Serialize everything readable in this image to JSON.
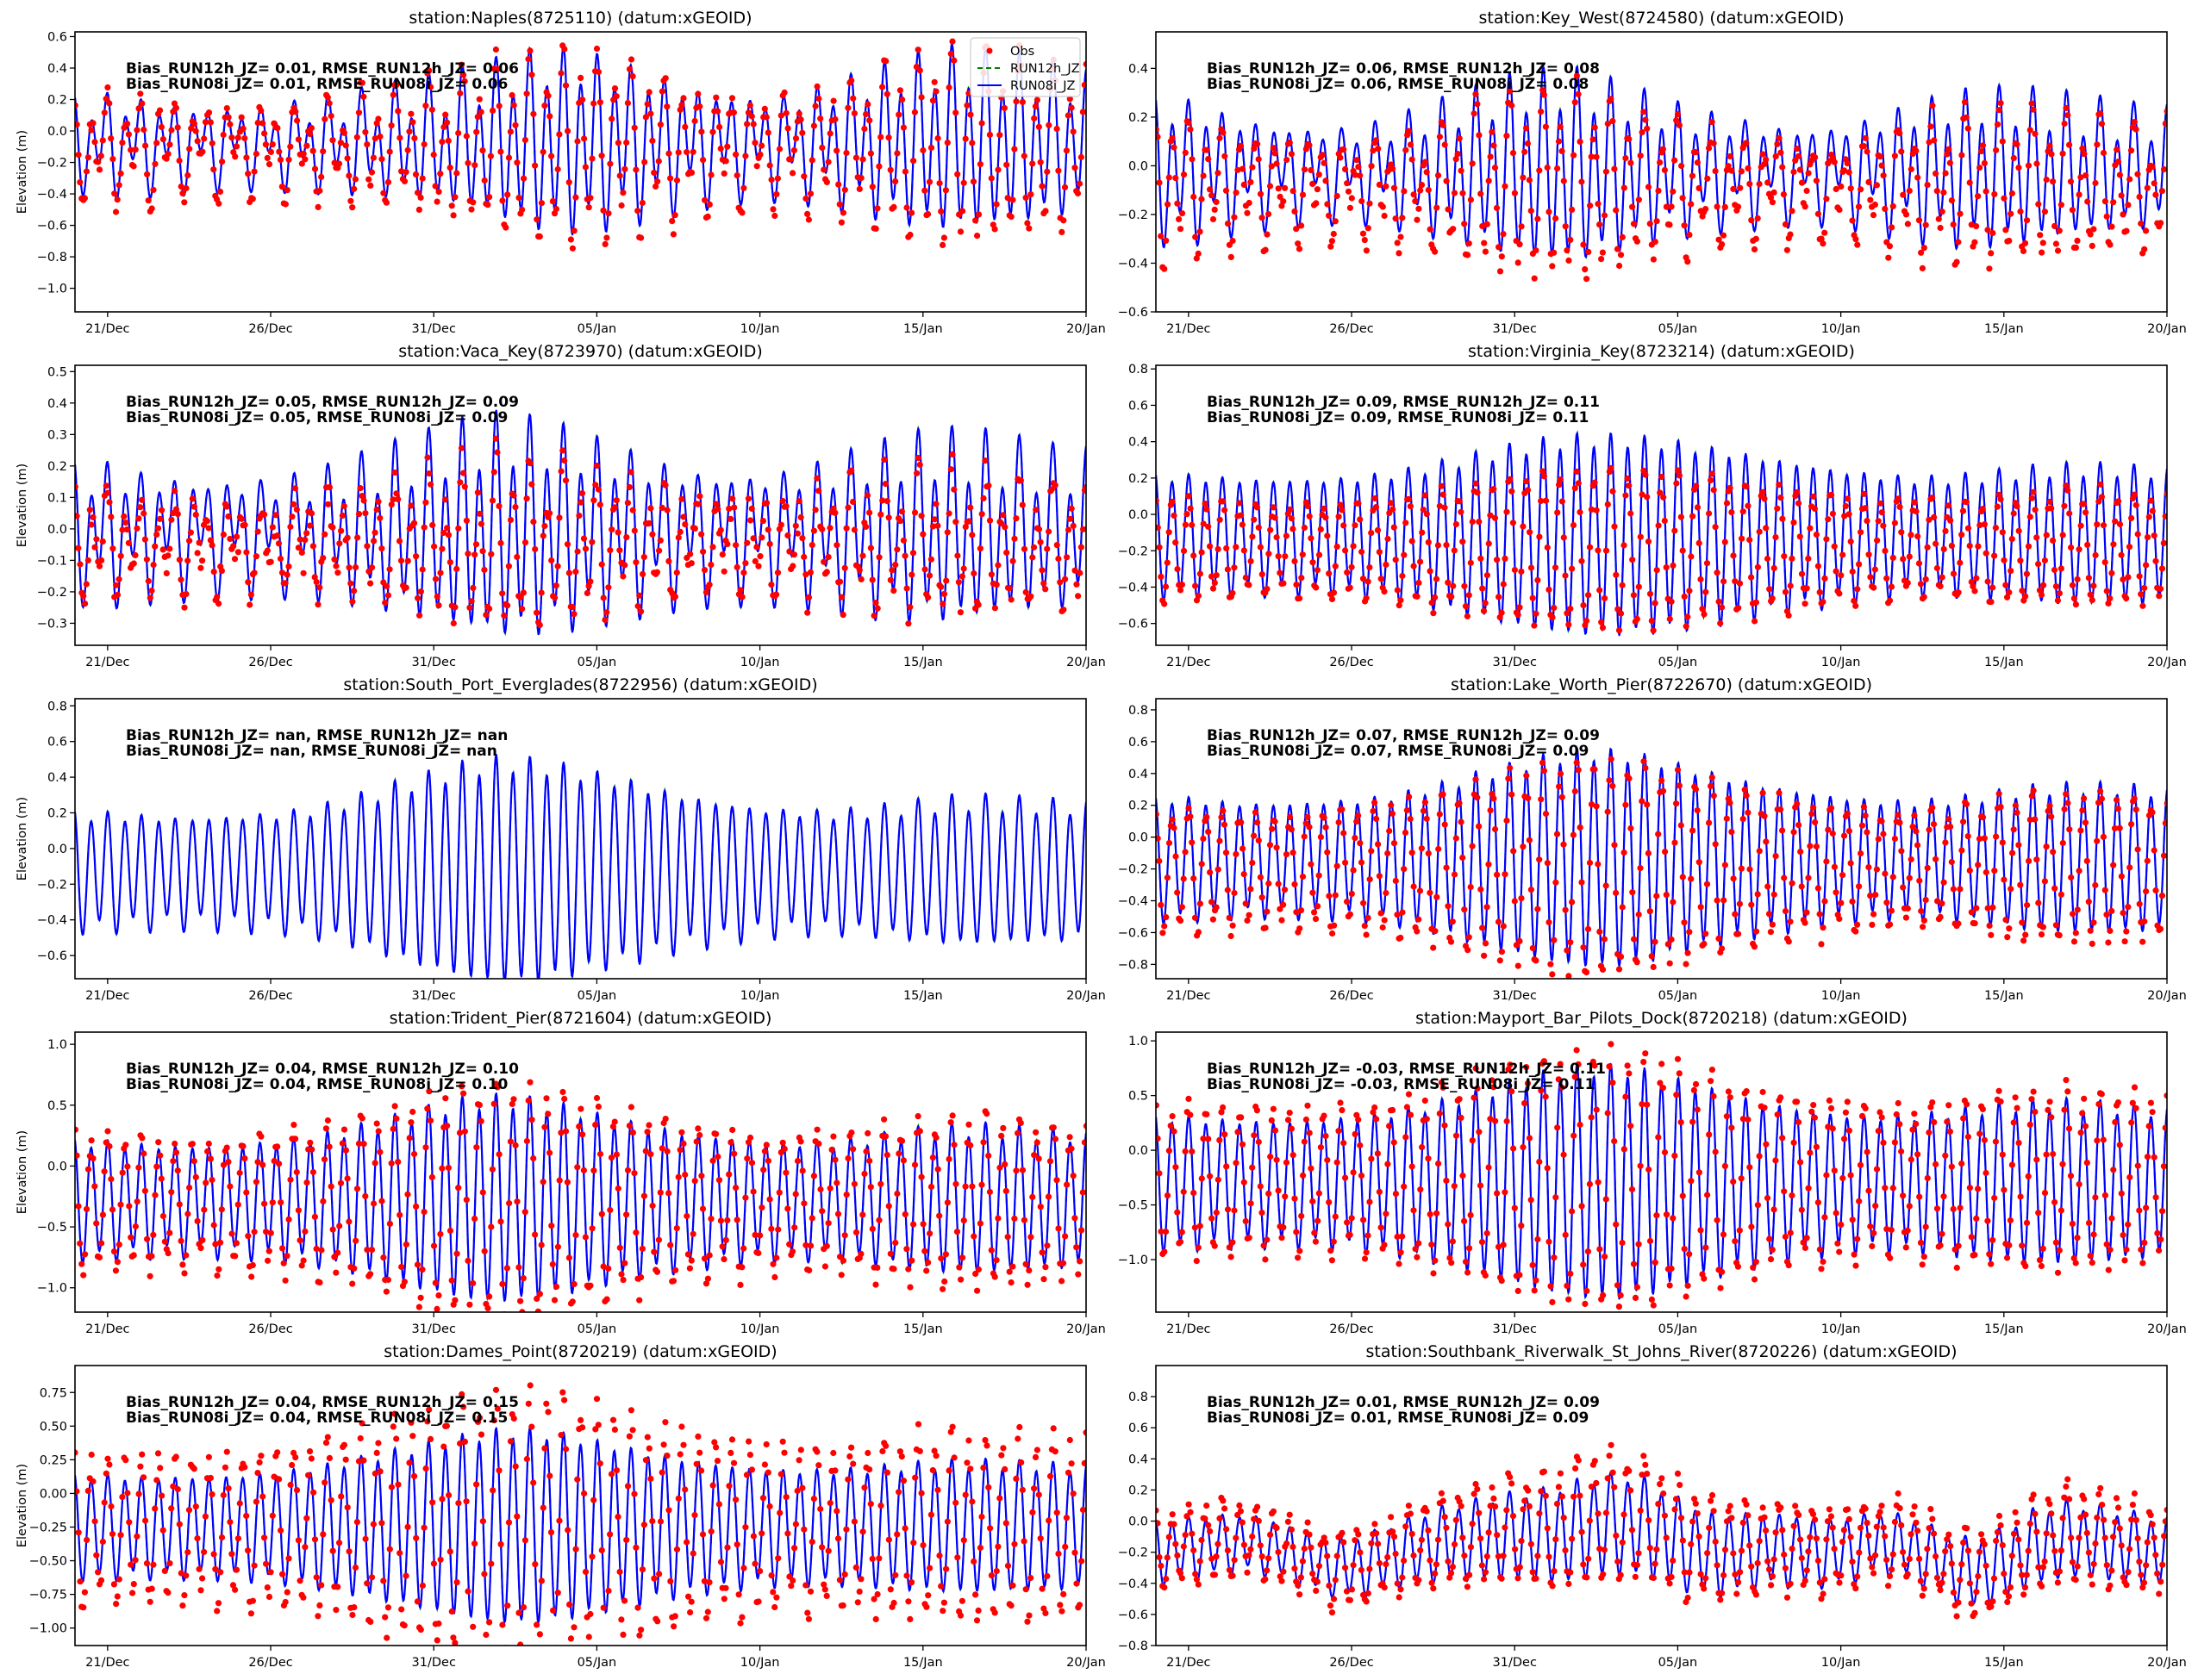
{
  "figure": {
    "legend": {
      "placement": "upper-right of first panel",
      "entries": [
        {
          "label": "Obs",
          "style": "dots",
          "color": "#ff0000"
        },
        {
          "label": "RUN12h_JZ",
          "style": "dashed",
          "color": "#008000"
        },
        {
          "label": "RUN08i_JZ",
          "style": "solid",
          "color": "#0000ff"
        }
      ]
    }
  },
  "chart_data": [
    {
      "type": "line",
      "title": "station:Naples(8725110) (datum:xGEOID)",
      "ylabel": "Elevation (m)",
      "xlabel": "",
      "xlim": [
        "20/Dec",
        "20/Jan"
      ],
      "xticks": [
        "21/Dec",
        "26/Dec",
        "31/Dec",
        "05/Jan",
        "10/Jan",
        "15/Jan",
        "20/Jan"
      ],
      "ylim": [
        -1.15,
        0.63
      ],
      "yticks": [
        -1.0,
        -0.8,
        -0.6,
        -0.4,
        -0.2,
        0.0,
        0.2,
        0.4,
        0.6
      ],
      "ytick_format": 1,
      "show_ylabel": true,
      "stats": [
        "Bias_RUN12h_JZ=  0.01, RMSE_RUN12h_JZ=  0.06",
        "Bias_RUN08i_JZ=  0.01, RMSE_RUN08i_JZ=  0.06"
      ],
      "show_legend": true,
      "has_obs": true,
      "tide": {
        "mean": -0.08,
        "semi_amp": [
          0.22,
          0.24,
          0.22,
          0.2,
          0.18,
          0.17,
          0.18,
          0.2,
          0.22,
          0.25,
          0.28,
          0.32,
          0.36,
          0.42,
          0.48,
          0.5,
          0.47,
          0.42,
          0.36,
          0.3,
          0.26,
          0.24,
          0.25,
          0.3,
          0.36,
          0.42,
          0.47,
          0.5,
          0.48,
          0.45,
          0.4,
          0.36
        ],
        "diurnal_amp": 0.14,
        "obs_offset": -0.03,
        "obs_scale": 1.08,
        "obs_noise": 0.05
      },
      "series": [
        {
          "name": "Obs",
          "kind": "scatter",
          "color": "#ff0000"
        },
        {
          "name": "RUN12h_JZ",
          "kind": "line",
          "color": "#008000"
        },
        {
          "name": "RUN08i_JZ",
          "kind": "line",
          "color": "#0000ff"
        }
      ]
    },
    {
      "type": "line",
      "title": "station:Key_West(8724580) (datum:xGEOID)",
      "ylabel": "Elevation (m)",
      "xlabel": "",
      "xlim": [
        "20/Dec",
        "20/Jan"
      ],
      "xticks": [
        "21/Dec",
        "26/Dec",
        "31/Dec",
        "05/Jan",
        "10/Jan",
        "15/Jan",
        "20/Jan"
      ],
      "ylim": [
        -0.6,
        0.55
      ],
      "yticks": [
        -0.6,
        -0.4,
        -0.2,
        0.0,
        0.2,
        0.4
      ],
      "ytick_format": 1,
      "show_ylabel": false,
      "stats": [
        "Bias_RUN12h_JZ=  0.06, RMSE_RUN12h_JZ=  0.08",
        "Bias_RUN08i_JZ=  0.06, RMSE_RUN08i_JZ=  0.08"
      ],
      "show_legend": false,
      "has_obs": true,
      "tide": {
        "mean": -0.02,
        "semi_amp": [
          0.25,
          0.24,
          0.2,
          0.17,
          0.15,
          0.14,
          0.14,
          0.16,
          0.2,
          0.24,
          0.28,
          0.32,
          0.34,
          0.34,
          0.3,
          0.26,
          0.22,
          0.19,
          0.17,
          0.15,
          0.14,
          0.15,
          0.18,
          0.22,
          0.25,
          0.27,
          0.27,
          0.26,
          0.24,
          0.22,
          0.2,
          0.2
        ],
        "diurnal_amp": 0.09,
        "obs_offset": -0.07,
        "obs_scale": 1.0,
        "obs_noise": 0.04
      },
      "series": [
        {
          "name": "Obs",
          "kind": "scatter",
          "color": "#ff0000"
        },
        {
          "name": "RUN12h_JZ",
          "kind": "line",
          "color": "#008000"
        },
        {
          "name": "RUN08i_JZ",
          "kind": "line",
          "color": "#0000ff"
        }
      ]
    },
    {
      "type": "line",
      "title": "station:Vaca_Key(8723970) (datum:xGEOID)",
      "ylabel": "Elevation (m)",
      "xlabel": "",
      "xlim": [
        "20/Dec",
        "20/Jan"
      ],
      "xticks": [
        "21/Dec",
        "26/Dec",
        "31/Dec",
        "05/Jan",
        "10/Jan",
        "15/Jan",
        "20/Jan"
      ],
      "ylim": [
        -0.37,
        0.52
      ],
      "yticks": [
        -0.3,
        -0.2,
        -0.1,
        0.0,
        0.1,
        0.2,
        0.3,
        0.4,
        0.5
      ],
      "ytick_format": 1,
      "show_ylabel": true,
      "stats": [
        "Bias_RUN12h_JZ=  0.05, RMSE_RUN12h_JZ=  0.09",
        "Bias_RUN08i_JZ=  0.05, RMSE_RUN08i_JZ=  0.09"
      ],
      "show_legend": false,
      "has_obs": true,
      "tide": {
        "mean": -0.01,
        "semi_amp": [
          0.17,
          0.17,
          0.15,
          0.14,
          0.13,
          0.13,
          0.13,
          0.14,
          0.16,
          0.19,
          0.22,
          0.25,
          0.28,
          0.3,
          0.29,
          0.27,
          0.24,
          0.21,
          0.18,
          0.16,
          0.15,
          0.15,
          0.16,
          0.18,
          0.21,
          0.23,
          0.25,
          0.25,
          0.24,
          0.22,
          0.2,
          0.2
        ],
        "diurnal_amp": 0.09,
        "obs_offset": -0.04,
        "obs_scale": 0.75,
        "obs_noise": 0.05
      },
      "series": [
        {
          "name": "Obs",
          "kind": "scatter",
          "color": "#ff0000"
        },
        {
          "name": "RUN12h_JZ",
          "kind": "line",
          "color": "#008000"
        },
        {
          "name": "RUN08i_JZ",
          "kind": "line",
          "color": "#0000ff"
        }
      ]
    },
    {
      "type": "line",
      "title": "station:Virginia_Key(8723214) (datum:xGEOID)",
      "ylabel": "Elevation (m)",
      "xlabel": "",
      "xlim": [
        "20/Dec",
        "20/Jan"
      ],
      "xticks": [
        "21/Dec",
        "26/Dec",
        "31/Dec",
        "05/Jan",
        "10/Jan",
        "15/Jan",
        "20/Jan"
      ],
      "ylim": [
        -0.72,
        0.82
      ],
      "yticks": [
        -0.6,
        -0.4,
        -0.2,
        0.0,
        0.2,
        0.4,
        0.6,
        0.8
      ],
      "ytick_format": 1,
      "show_ylabel": false,
      "stats": [
        "Bias_RUN12h_JZ=  0.09, RMSE_RUN12h_JZ=  0.11",
        "Bias_RUN08i_JZ=  0.09, RMSE_RUN08i_JZ=  0.11"
      ],
      "show_legend": false,
      "has_obs": true,
      "tide": {
        "mean": -0.12,
        "semi_amp": [
          0.33,
          0.32,
          0.31,
          0.3,
          0.3,
          0.3,
          0.31,
          0.33,
          0.36,
          0.4,
          0.44,
          0.48,
          0.51,
          0.53,
          0.53,
          0.52,
          0.5,
          0.47,
          0.44,
          0.41,
          0.38,
          0.35,
          0.33,
          0.31,
          0.31,
          0.32,
          0.34,
          0.36,
          0.37,
          0.37,
          0.36,
          0.35
        ],
        "diurnal_amp": 0.04,
        "obs_offset": -0.07,
        "obs_scale": 0.8,
        "obs_noise": 0.03
      },
      "series": [
        {
          "name": "Obs",
          "kind": "scatter",
          "color": "#ff0000"
        },
        {
          "name": "RUN12h_JZ",
          "kind": "line",
          "color": "#008000"
        },
        {
          "name": "RUN08i_JZ",
          "kind": "line",
          "color": "#0000ff"
        }
      ]
    },
    {
      "type": "line",
      "title": "station:South_Port_Everglades(8722956) (datum:xGEOID)",
      "ylabel": "Elevation (m)",
      "xlabel": "",
      "xlim": [
        "20/Dec",
        "20/Jan"
      ],
      "xticks": [
        "21/Dec",
        "26/Dec",
        "31/Dec",
        "05/Jan",
        "10/Jan",
        "15/Jan",
        "20/Jan"
      ],
      "ylim": [
        -0.73,
        0.84
      ],
      "yticks": [
        -0.6,
        -0.4,
        -0.2,
        0.0,
        0.2,
        0.4,
        0.6,
        0.8
      ],
      "ytick_format": 1,
      "show_ylabel": true,
      "stats": [
        "Bias_RUN12h_JZ=   nan, RMSE_RUN12h_JZ=   nan",
        "Bias_RUN08i_JZ=   nan, RMSE_RUN08i_JZ=   nan"
      ],
      "show_legend": false,
      "has_obs": false,
      "tide": {
        "mean": -0.13,
        "semi_amp": [
          0.32,
          0.31,
          0.3,
          0.29,
          0.29,
          0.3,
          0.31,
          0.33,
          0.37,
          0.42,
          0.48,
          0.53,
          0.58,
          0.61,
          0.6,
          0.57,
          0.53,
          0.49,
          0.44,
          0.4,
          0.37,
          0.34,
          0.33,
          0.32,
          0.33,
          0.35,
          0.37,
          0.39,
          0.39,
          0.38,
          0.37,
          0.36
        ],
        "diurnal_amp": 0.05,
        "obs_offset": 0,
        "obs_scale": 1,
        "obs_noise": 0
      },
      "series": [
        {
          "name": "Obs",
          "kind": "scatter",
          "color": "#ff0000"
        },
        {
          "name": "RUN12h_JZ",
          "kind": "line",
          "color": "#008000"
        },
        {
          "name": "RUN08i_JZ",
          "kind": "line",
          "color": "#0000ff"
        }
      ]
    },
    {
      "type": "line",
      "title": "station:Lake_Worth_Pier(8722670) (datum:xGEOID)",
      "ylabel": "Elevation (m)",
      "xlabel": "",
      "xlim": [
        "20/Dec",
        "20/Jan"
      ],
      "xticks": [
        "21/Dec",
        "26/Dec",
        "31/Dec",
        "05/Jan",
        "10/Jan",
        "15/Jan",
        "20/Jan"
      ],
      "ylim": [
        -0.89,
        0.87
      ],
      "yticks": [
        -0.8,
        -0.6,
        -0.4,
        -0.2,
        0.0,
        0.2,
        0.4,
        0.6,
        0.8
      ],
      "ytick_format": 1,
      "show_ylabel": false,
      "stats": [
        "Bias_RUN12h_JZ=  0.07, RMSE_RUN12h_JZ=  0.09",
        "Bias_RUN08i_JZ=  0.07, RMSE_RUN08i_JZ=  0.09"
      ],
      "show_legend": false,
      "has_obs": true,
      "tide": {
        "mean": -0.14,
        "semi_amp": [
          0.38,
          0.37,
          0.35,
          0.34,
          0.34,
          0.35,
          0.36,
          0.38,
          0.42,
          0.47,
          0.53,
          0.58,
          0.63,
          0.66,
          0.66,
          0.63,
          0.58,
          0.53,
          0.48,
          0.44,
          0.41,
          0.38,
          0.36,
          0.35,
          0.36,
          0.38,
          0.41,
          0.44,
          0.45,
          0.45,
          0.44,
          0.42
        ],
        "diurnal_amp": 0.04,
        "obs_offset": -0.06,
        "obs_scale": 1.0,
        "obs_noise": 0.04
      },
      "series": [
        {
          "name": "Obs",
          "kind": "scatter",
          "color": "#ff0000"
        },
        {
          "name": "RUN12h_JZ",
          "kind": "line",
          "color": "#008000"
        },
        {
          "name": "RUN08i_JZ",
          "kind": "line",
          "color": "#0000ff"
        }
      ]
    },
    {
      "type": "line",
      "title": "station:Trident_Pier(8721604) (datum:xGEOID)",
      "ylabel": "Elevation (m)",
      "xlabel": "",
      "xlim": [
        "20/Dec",
        "20/Jan"
      ],
      "xticks": [
        "21/Dec",
        "26/Dec",
        "31/Dec",
        "05/Jan",
        "10/Jan",
        "15/Jan",
        "20/Jan"
      ],
      "ylim": [
        -1.2,
        1.1
      ],
      "yticks": [
        -1.0,
        -0.5,
        0.0,
        0.5,
        1.0
      ],
      "ytick_format": 1,
      "show_ylabel": true,
      "stats": [
        "Bias_RUN12h_JZ=  0.04, RMSE_RUN12h_JZ=  0.10",
        "Bias_RUN08i_JZ=  0.04, RMSE_RUN08i_JZ=  0.10"
      ],
      "show_legend": false,
      "has_obs": true,
      "tide": {
        "mean": -0.28,
        "semi_amp": [
          0.48,
          0.46,
          0.44,
          0.43,
          0.43,
          0.44,
          0.46,
          0.49,
          0.54,
          0.6,
          0.67,
          0.74,
          0.8,
          0.82,
          0.8,
          0.75,
          0.68,
          0.62,
          0.57,
          0.53,
          0.5,
          0.47,
          0.46,
          0.46,
          0.48,
          0.52,
          0.56,
          0.58,
          0.58,
          0.56,
          0.54,
          0.52
        ],
        "diurnal_amp": 0.06,
        "obs_offset": -0.02,
        "obs_scale": 1.15,
        "obs_noise": 0.06
      },
      "series": [
        {
          "name": "Obs",
          "kind": "scatter",
          "color": "#ff0000"
        },
        {
          "name": "RUN12h_JZ",
          "kind": "line",
          "color": "#008000"
        },
        {
          "name": "RUN08i_JZ",
          "kind": "line",
          "color": "#0000ff"
        }
      ]
    },
    {
      "type": "line",
      "title": "station:Mayport_Bar_Pilots_Dock(8720218) (datum:xGEOID)",
      "ylabel": "Elevation (m)",
      "xlabel": "",
      "xlim": [
        "20/Dec",
        "20/Jan"
      ],
      "xticks": [
        "21/Dec",
        "26/Dec",
        "31/Dec",
        "05/Jan",
        "10/Jan",
        "15/Jan",
        "20/Jan"
      ],
      "ylim": [
        -1.48,
        1.08
      ],
      "yticks": [
        -1.0,
        -0.5,
        0.0,
        0.5,
        1.0
      ],
      "ytick_format": 1,
      "show_ylabel": false,
      "stats": [
        "Bias_RUN12h_JZ= -0.03, RMSE_RUN12h_JZ=  0.11",
        "Bias_RUN08i_JZ= -0.03, RMSE_RUN08i_JZ=  0.11"
      ],
      "show_legend": false,
      "has_obs": true,
      "tide": {
        "mean": -0.3,
        "semi_amp": [
          0.6,
          0.58,
          0.56,
          0.55,
          0.55,
          0.56,
          0.58,
          0.62,
          0.67,
          0.74,
          0.82,
          0.9,
          0.98,
          1.03,
          1.04,
          1.0,
          0.92,
          0.84,
          0.76,
          0.7,
          0.65,
          0.61,
          0.59,
          0.6,
          0.62,
          0.66,
          0.7,
          0.72,
          0.72,
          0.7,
          0.67,
          0.65
        ],
        "diurnal_amp": 0.06,
        "obs_offset": 0.03,
        "obs_scale": 1.12,
        "obs_noise": 0.06
      },
      "series": [
        {
          "name": "Obs",
          "kind": "scatter",
          "color": "#ff0000"
        },
        {
          "name": "RUN12h_JZ",
          "kind": "line",
          "color": "#008000"
        },
        {
          "name": "RUN08i_JZ",
          "kind": "line",
          "color": "#0000ff"
        }
      ]
    },
    {
      "type": "line",
      "title": "station:Dames_Point(8720219) (datum:xGEOID)",
      "ylabel": "Elevation (m)",
      "xlabel": "",
      "xlim": [
        "20/Dec",
        "20/Jan"
      ],
      "xticks": [
        "21/Dec",
        "26/Dec",
        "31/Dec",
        "05/Jan",
        "10/Jan",
        "15/Jan",
        "20/Jan"
      ],
      "ylim": [
        -1.13,
        0.95
      ],
      "yticks": [
        -1.0,
        -0.75,
        -0.5,
        -0.25,
        0.0,
        0.25,
        0.5,
        0.75
      ],
      "ytick_format": 2,
      "show_ylabel": true,
      "stats": [
        "Bias_RUN12h_JZ=  0.04, RMSE_RUN12h_JZ=  0.15",
        "Bias_RUN08i_JZ=  0.04, RMSE_RUN08i_JZ=  0.15"
      ],
      "show_legend": false,
      "has_obs": true,
      "tide": {
        "mean": -0.25,
        "semi_amp": [
          0.38,
          0.37,
          0.36,
          0.36,
          0.36,
          0.37,
          0.39,
          0.42,
          0.46,
          0.51,
          0.56,
          0.61,
          0.66,
          0.7,
          0.7,
          0.67,
          0.62,
          0.57,
          0.52,
          0.48,
          0.45,
          0.42,
          0.41,
          0.41,
          0.42,
          0.44,
          0.46,
          0.47,
          0.47,
          0.46,
          0.45,
          0.44
        ],
        "diurnal_amp": 0.04,
        "obs_offset": 0.0,
        "obs_scale": 1.4,
        "obs_noise": 0.08
      },
      "series": [
        {
          "name": "Obs",
          "kind": "scatter",
          "color": "#ff0000"
        },
        {
          "name": "RUN12h_JZ",
          "kind": "line",
          "color": "#008000"
        },
        {
          "name": "RUN08i_JZ",
          "kind": "line",
          "color": "#0000ff"
        }
      ]
    },
    {
      "type": "line",
      "title": "station:Southbank_Riverwalk_St_Johns_River(8720226) (datum:xGEOID)",
      "ylabel": "Elevation (m)",
      "xlabel": "",
      "xlim": [
        "20/Dec",
        "20/Jan"
      ],
      "xticks": [
        "21/Dec",
        "26/Dec",
        "31/Dec",
        "05/Jan",
        "10/Jan",
        "15/Jan",
        "20/Jan"
      ],
      "ylim": [
        -0.8,
        1.0
      ],
      "yticks": [
        -0.8,
        -0.6,
        -0.4,
        -0.2,
        0.0,
        0.2,
        0.4,
        0.6,
        0.8
      ],
      "ytick_format": 1,
      "show_ylabel": false,
      "stats": [
        "Bias_RUN12h_JZ=  0.01, RMSE_RUN12h_JZ=  0.09",
        "Bias_RUN08i_JZ=  0.01, RMSE_RUN08i_JZ=  0.09"
      ],
      "show_legend": false,
      "has_obs": true,
      "tide": {
        "mean": -0.2,
        "semi_amp": [
          0.2,
          0.19,
          0.18,
          0.17,
          0.17,
          0.17,
          0.18,
          0.19,
          0.21,
          0.23,
          0.25,
          0.27,
          0.29,
          0.31,
          0.31,
          0.3,
          0.28,
          0.26,
          0.24,
          0.22,
          0.21,
          0.2,
          0.19,
          0.19,
          0.2,
          0.21,
          0.22,
          0.23,
          0.23,
          0.22,
          0.22,
          0.21
        ],
        "diurnal_amp": 0.03,
        "low_freq": [
          0.0,
          0.02,
          0.05,
          0.06,
          0.0,
          -0.08,
          -0.1,
          -0.04,
          0.02,
          0.06,
          0.08,
          0.1,
          0.1,
          0.14,
          0.18,
          0.16,
          0.06,
          -0.02,
          0.0,
          0.02,
          0.0,
          0.0,
          0.06,
          0.04,
          -0.06,
          -0.14,
          -0.08,
          0.04,
          0.08,
          0.06,
          0.02,
          0.0
        ],
        "obs_offset": 0.02,
        "obs_scale": 1.25,
        "obs_noise": 0.05
      },
      "series": [
        {
          "name": "Obs",
          "kind": "scatter",
          "color": "#ff0000"
        },
        {
          "name": "RUN12h_JZ",
          "kind": "line",
          "color": "#008000"
        },
        {
          "name": "RUN08i_JZ",
          "kind": "line",
          "color": "#0000ff"
        }
      ]
    }
  ]
}
